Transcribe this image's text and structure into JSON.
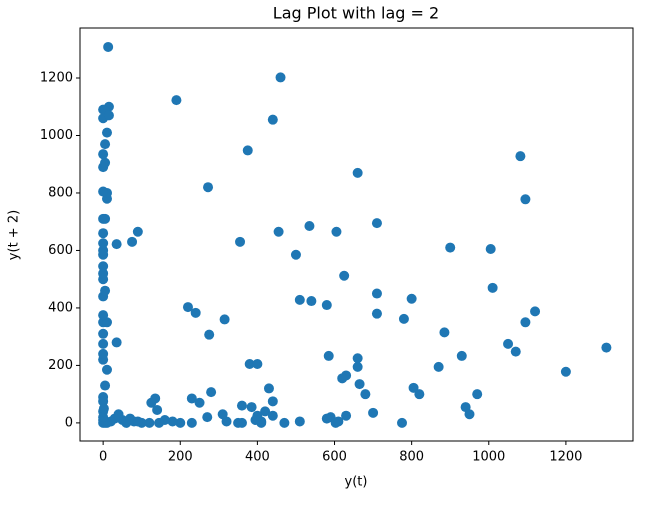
{
  "chart_data": {
    "type": "scatter",
    "title": "Lag Plot with lag = 2",
    "x_label": "y(t)",
    "y_label": "y(t + 2)",
    "color": "#1f77b4",
    "grid": false,
    "x": [
      13,
      190,
      460,
      440,
      375,
      272,
      660,
      1082,
      1095,
      710,
      535,
      605,
      455,
      90,
      75,
      35,
      355,
      500,
      900,
      1005,
      625,
      1010,
      710,
      800,
      510,
      540,
      580,
      1120,
      1095,
      710,
      220,
      240,
      315,
      780,
      885,
      275,
      1050,
      1305,
      1070,
      930,
      585,
      660,
      660,
      870,
      380,
      400,
      35,
      1200,
      630,
      620,
      665,
      805,
      430,
      820,
      970,
      680,
      135,
      125,
      230,
      250,
      280,
      440,
      360,
      385,
      940,
      950,
      700,
      590,
      630,
      580,
      603,
      610,
      775,
      510,
      470,
      410,
      360,
      350,
      320,
      310,
      270,
      230,
      200,
      180,
      160,
      145,
      140,
      120,
      100,
      80,
      60,
      50,
      40,
      30,
      20,
      10,
      5,
      0,
      0,
      0,
      0,
      0,
      0,
      5,
      10,
      0,
      0,
      0,
      0,
      0,
      10,
      0,
      0,
      5,
      0,
      0,
      0,
      0,
      0,
      0,
      0,
      0,
      5,
      10,
      10,
      0,
      0,
      5,
      0,
      5,
      10,
      15,
      0,
      5,
      0,
      15,
      410,
      420,
      400,
      395,
      440,
      2,
      60,
      70,
      90
    ],
    "values": [
      1308,
      1123,
      1202,
      1055,
      948,
      820,
      870,
      928,
      778,
      695,
      685,
      665,
      665,
      665,
      630,
      622,
      630,
      585,
      610,
      605,
      512,
      470,
      450,
      432,
      428,
      424,
      410,
      388,
      350,
      380,
      403,
      383,
      360,
      362,
      315,
      307,
      275,
      262,
      248,
      233,
      233,
      225,
      195,
      195,
      205,
      205,
      280,
      178,
      165,
      155,
      135,
      122,
      120,
      100,
      100,
      100,
      85,
      70,
      85,
      70,
      107,
      75,
      60,
      55,
      55,
      30,
      35,
      20,
      25,
      15,
      0,
      5,
      0,
      5,
      0,
      5,
      0,
      0,
      5,
      30,
      20,
      0,
      0,
      5,
      10,
      0,
      45,
      0,
      0,
      5,
      0,
      10,
      30,
      15,
      5,
      0,
      0,
      0,
      10,
      20,
      40,
      90,
      75,
      130,
      185,
      220,
      240,
      275,
      310,
      350,
      350,
      375,
      440,
      460,
      500,
      520,
      545,
      585,
      600,
      625,
      660,
      710,
      710,
      780,
      800,
      805,
      890,
      905,
      935,
      970,
      1010,
      1100,
      1090,
      1085,
      1060,
      1070,
      0,
      40,
      25,
      10,
      25,
      50,
      5,
      15,
      5
    ],
    "xlim": [
      -60,
      1374
    ],
    "ylim": [
      -63,
      1374
    ],
    "xticks": [
      0,
      200,
      400,
      600,
      800,
      1000,
      1200
    ],
    "yticks": [
      0,
      200,
      400,
      600,
      800,
      1000,
      1200
    ]
  }
}
